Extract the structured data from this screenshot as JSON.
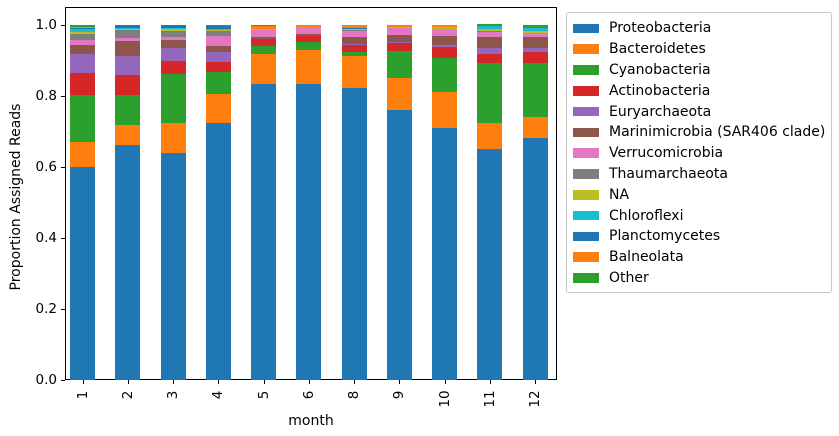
{
  "chart_data": {
    "type": "bar",
    "stacked": true,
    "title": "",
    "xlabel": "month",
    "ylabel": "Proportion Assigned Reads",
    "categories": [
      "1",
      "2",
      "3",
      "4",
      "5",
      "6",
      "8",
      "9",
      "10",
      "11",
      "12"
    ],
    "ylim": [
      0,
      1.05
    ],
    "yticks": [
      "0.0",
      "0.2",
      "0.4",
      "0.6",
      "0.8",
      "1.0"
    ],
    "grid": false,
    "legend_position": "outside-upper-right",
    "x_tick_rotation": 90,
    "series": [
      {
        "name": "Proteobacteria",
        "color": "#1f77b4",
        "values": [
          0.6,
          0.662,
          0.639,
          0.724,
          0.835,
          0.835,
          0.823,
          0.76,
          0.71,
          0.651,
          0.682
        ]
      },
      {
        "name": "Bacteroidetes",
        "color": "#ff7f0e",
        "values": [
          0.07,
          0.056,
          0.085,
          0.083,
          0.084,
          0.095,
          0.09,
          0.09,
          0.1,
          0.074,
          0.06
        ]
      },
      {
        "name": "Cyanobacteria",
        "color": "#2ca02c",
        "values": [
          0.132,
          0.085,
          0.137,
          0.062,
          0.022,
          0.022,
          0.011,
          0.077,
          0.097,
          0.168,
          0.151
        ]
      },
      {
        "name": "Actinobacteria",
        "color": "#d62728",
        "values": [
          0.063,
          0.056,
          0.037,
          0.028,
          0.02,
          0.017,
          0.02,
          0.022,
          0.03,
          0.026,
          0.031
        ]
      },
      {
        "name": "Euryarchaeota",
        "color": "#9467bd",
        "values": [
          0.054,
          0.055,
          0.037,
          0.028,
          0.0,
          0.0,
          0.002,
          0.002,
          0.008,
          0.016,
          0.011
        ]
      },
      {
        "name": "Marinimicrobia (SAR406 clade)",
        "color": "#8c564b",
        "values": [
          0.024,
          0.042,
          0.023,
          0.017,
          0.005,
          0.006,
          0.019,
          0.02,
          0.025,
          0.031,
          0.03
        ]
      },
      {
        "name": "Verrucomicrobia",
        "color": "#e377c2",
        "values": [
          0.014,
          0.008,
          0.008,
          0.028,
          0.02,
          0.019,
          0.02,
          0.02,
          0.02,
          0.014,
          0.013
        ]
      },
      {
        "name": "Thaumarchaeota",
        "color": "#7f7f7f",
        "values": [
          0.018,
          0.021,
          0.017,
          0.014,
          0.002,
          0.0,
          0.002,
          0.0,
          0.0,
          0.004,
          0.0
        ]
      },
      {
        "name": "NA",
        "color": "#bcbd22",
        "values": [
          0.006,
          0.003,
          0.005,
          0.003,
          0.002,
          0.0,
          0.002,
          0.004,
          0.004,
          0.004,
          0.006
        ]
      },
      {
        "name": "Chloroflexi",
        "color": "#17becf",
        "values": [
          0.009,
          0.004,
          0.004,
          0.003,
          0.0,
          0.0,
          0.0,
          0.0,
          0.0,
          0.008,
          0.008
        ]
      },
      {
        "name": "Planctomycetes",
        "color": "#1f77b4",
        "values": [
          0.002,
          0.008,
          0.008,
          0.008,
          0.0,
          0.0,
          0.002,
          0.0,
          0.0,
          0.0,
          0.0
        ]
      },
      {
        "name": "Balneolata",
        "color": "#ff7f0e",
        "values": [
          0.001,
          0.0,
          0.0,
          0.001,
          0.008,
          0.006,
          0.009,
          0.005,
          0.006,
          0.0,
          0.0
        ]
      },
      {
        "name": "Other",
        "color": "#2ca02c",
        "values": [
          0.007,
          0.0,
          0.0,
          0.001,
          0.002,
          0.0,
          0.0,
          0.0,
          0.0,
          0.008,
          0.008
        ]
      }
    ]
  }
}
